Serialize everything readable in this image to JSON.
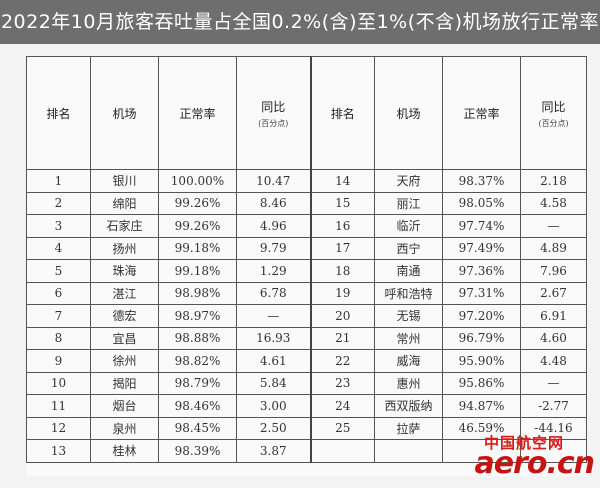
{
  "title": "2022年10月旅客吞吐量占全国0.2%(含)至1%(不含)机场放行正常率",
  "headers": {
    "rank": "排名",
    "airport": "机场",
    "rate": "正常率",
    "yoy": "同比",
    "yoy_unit": "(百分点)"
  },
  "rows": [
    {
      "left": {
        "rank": "1",
        "airport": "银川",
        "rate": "100.00%",
        "yoy": "10.47"
      },
      "right": {
        "rank": "14",
        "airport": "天府",
        "rate": "98.37%",
        "yoy": "2.18"
      }
    },
    {
      "left": {
        "rank": "2",
        "airport": "绵阳",
        "rate": "99.26%",
        "yoy": "8.46"
      },
      "right": {
        "rank": "15",
        "airport": "丽江",
        "rate": "98.05%",
        "yoy": "4.58"
      }
    },
    {
      "left": {
        "rank": "3",
        "airport": "石家庄",
        "rate": "99.26%",
        "yoy": "4.96"
      },
      "right": {
        "rank": "16",
        "airport": "临沂",
        "rate": "97.74%",
        "yoy": "—"
      }
    },
    {
      "left": {
        "rank": "4",
        "airport": "扬州",
        "rate": "99.18%",
        "yoy": "9.79"
      },
      "right": {
        "rank": "17",
        "airport": "西宁",
        "rate": "97.49%",
        "yoy": "4.89"
      }
    },
    {
      "left": {
        "rank": "5",
        "airport": "珠海",
        "rate": "99.18%",
        "yoy": "1.29"
      },
      "right": {
        "rank": "18",
        "airport": "南通",
        "rate": "97.36%",
        "yoy": "7.96"
      }
    },
    {
      "left": {
        "rank": "6",
        "airport": "湛江",
        "rate": "98.98%",
        "yoy": "6.78"
      },
      "right": {
        "rank": "19",
        "airport": "呼和浩特",
        "rate": "97.31%",
        "yoy": "2.67"
      }
    },
    {
      "left": {
        "rank": "7",
        "airport": "德宏",
        "rate": "98.97%",
        "yoy": "—"
      },
      "right": {
        "rank": "20",
        "airport": "无锡",
        "rate": "97.20%",
        "yoy": "6.91"
      }
    },
    {
      "left": {
        "rank": "8",
        "airport": "宜昌",
        "rate": "98.88%",
        "yoy": "16.93"
      },
      "right": {
        "rank": "21",
        "airport": "常州",
        "rate": "96.79%",
        "yoy": "4.60"
      }
    },
    {
      "left": {
        "rank": "9",
        "airport": "徐州",
        "rate": "98.82%",
        "yoy": "4.61"
      },
      "right": {
        "rank": "22",
        "airport": "威海",
        "rate": "95.90%",
        "yoy": "4.48"
      }
    },
    {
      "left": {
        "rank": "10",
        "airport": "揭阳",
        "rate": "98.79%",
        "yoy": "5.84"
      },
      "right": {
        "rank": "23",
        "airport": "惠州",
        "rate": "95.86%",
        "yoy": "—"
      }
    },
    {
      "left": {
        "rank": "11",
        "airport": "烟台",
        "rate": "98.46%",
        "yoy": "3.00"
      },
      "right": {
        "rank": "24",
        "airport": "西双版纳",
        "rate": "94.87%",
        "yoy": "-2.77"
      }
    },
    {
      "left": {
        "rank": "12",
        "airport": "泉州",
        "rate": "98.45%",
        "yoy": "2.50"
      },
      "right": {
        "rank": "25",
        "airport": "拉萨",
        "rate": "46.59%",
        "yoy": "-44.16"
      }
    },
    {
      "left": {
        "rank": "13",
        "airport": "桂林",
        "rate": "98.39%",
        "yoy": "3.87"
      },
      "right": {
        "rank": "",
        "airport": "",
        "rate": "",
        "yoy": ""
      }
    }
  ],
  "watermark": {
    "cn": "中国航空网",
    "en": "aero.cn"
  },
  "colors": {
    "title_bg": "#6e6e6e",
    "title_text": "#ffffff",
    "border": "#555555",
    "logo_red": "#c81313"
  }
}
